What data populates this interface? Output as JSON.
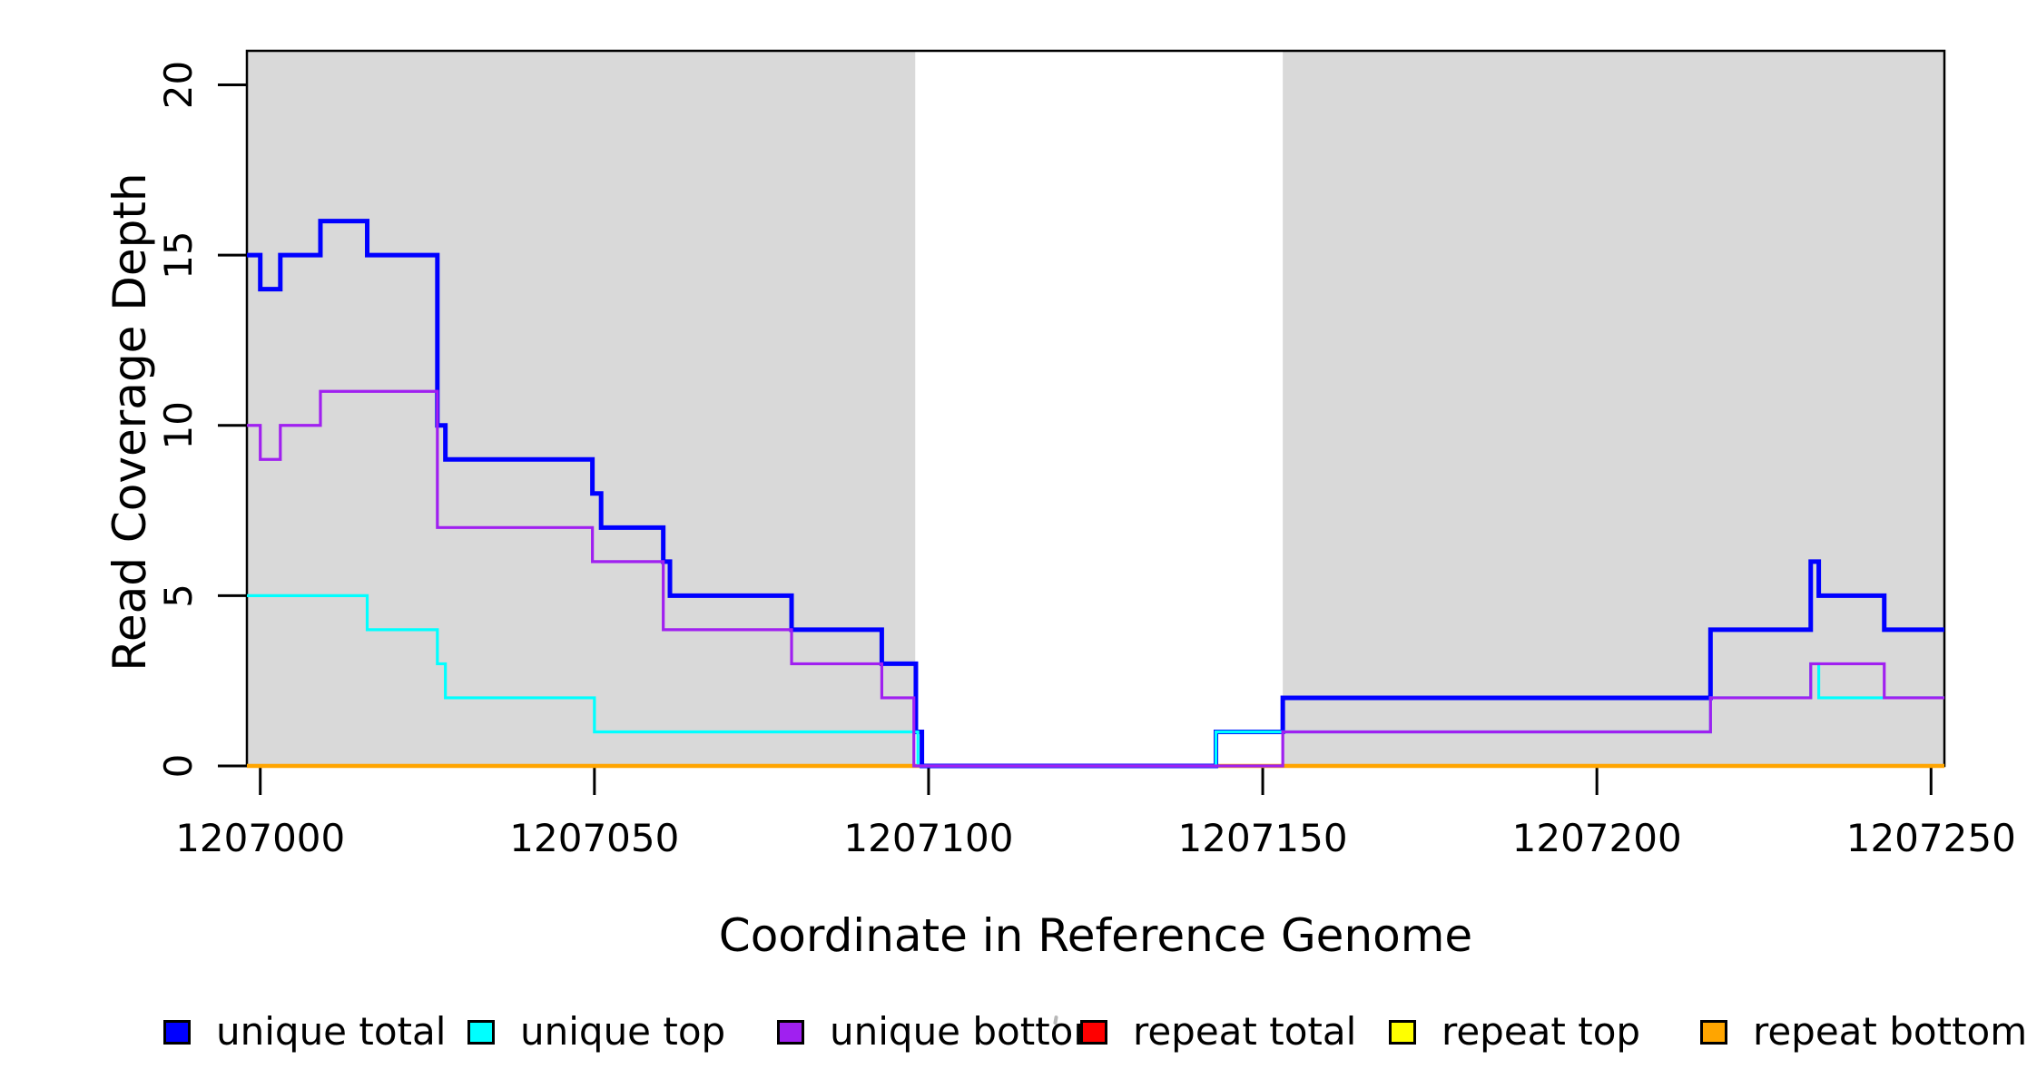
{
  "chart_data": {
    "type": "line",
    "subtype": "step",
    "title": "",
    "xlabel": "Coordinate in Reference Genome",
    "ylabel": "Read Coverage Depth",
    "xlim": [
      1206998,
      1207252
    ],
    "ylim": [
      0,
      21
    ],
    "grid": false,
    "x_ticks": [
      {
        "value": 1207000,
        "label": "1207000"
      },
      {
        "value": 1207050,
        "label": "1207050"
      },
      {
        "value": 1207100,
        "label": "1207100"
      },
      {
        "value": 1207150,
        "label": "1207150"
      },
      {
        "value": 1207200,
        "label": "1207200"
      },
      {
        "value": 1207250,
        "label": "1207250"
      }
    ],
    "y_ticks": [
      {
        "value": 0,
        "label": "0"
      },
      {
        "value": 5,
        "label": "5"
      },
      {
        "value": 10,
        "label": "10"
      },
      {
        "value": 15,
        "label": "15"
      },
      {
        "value": 20,
        "label": "20"
      }
    ],
    "highlight_regions": [
      {
        "from": 1206998,
        "to": 1207098,
        "color": "#d9d9d9"
      },
      {
        "from": 1207153,
        "to": 1207252,
        "color": "#d9d9d9"
      }
    ],
    "series": [
      {
        "name": "repeat total",
        "color": "#ff0000",
        "width": 3,
        "points": [
          [
            1206998,
            0
          ]
        ]
      },
      {
        "name": "repeat top",
        "color": "#ffff00",
        "width": 3,
        "points": [
          [
            1206998,
            0
          ]
        ]
      },
      {
        "name": "repeat bottom",
        "color": "#ffa500",
        "width": 4.5,
        "points": [
          [
            1206998,
            0
          ]
        ]
      },
      {
        "name": "unique total",
        "color": "#0000ff",
        "width": 5,
        "points": [
          [
            1206998,
            15
          ],
          [
            1207000,
            14
          ],
          [
            1207003,
            15
          ],
          [
            1207009,
            16
          ],
          [
            1207016,
            15
          ],
          [
            1207026.5,
            10
          ],
          [
            1207027.7,
            9
          ],
          [
            1207049.7,
            8
          ],
          [
            1207051,
            7
          ],
          [
            1207060.3,
            6
          ],
          [
            1207061.3,
            5
          ],
          [
            1207079.5,
            4
          ],
          [
            1207093,
            3
          ],
          [
            1207098.1,
            1
          ],
          [
            1207099,
            0
          ],
          [
            1207143,
            1
          ],
          [
            1207153,
            2
          ],
          [
            1207217,
            4
          ],
          [
            1207232,
            6
          ],
          [
            1207233.2,
            5
          ],
          [
            1207243,
            4
          ]
        ]
      },
      {
        "name": "unique top",
        "color": "#00ffff",
        "width": 3.2,
        "points": [
          [
            1206998,
            5
          ],
          [
            1207016,
            4
          ],
          [
            1207026.5,
            3
          ],
          [
            1207027.7,
            2
          ],
          [
            1207050,
            1
          ],
          [
            1207098.4,
            0
          ],
          [
            1207143,
            1
          ],
          [
            1207217,
            2
          ],
          [
            1207232,
            3
          ],
          [
            1207233.2,
            2
          ]
        ]
      },
      {
        "name": "unique bottom",
        "color": "#a020f0",
        "width": 3.2,
        "points": [
          [
            1206998,
            10
          ],
          [
            1207000,
            9
          ],
          [
            1207003,
            10
          ],
          [
            1207009,
            11
          ],
          [
            1207026.5,
            7
          ],
          [
            1207049.7,
            6
          ],
          [
            1207060.3,
            4
          ],
          [
            1207079.5,
            3
          ],
          [
            1207093,
            2
          ],
          [
            1207097.8,
            0
          ],
          [
            1207153,
            1
          ],
          [
            1207217,
            2
          ],
          [
            1207232,
            3
          ],
          [
            1207243,
            2
          ]
        ]
      }
    ],
    "legend": {
      "position": "bottom",
      "items": [
        {
          "label": "unique total",
          "color": "#0000ff"
        },
        {
          "label": "unique top",
          "color": "#00ffff"
        },
        {
          "label": "unique bottom",
          "color": "#a020f0"
        },
        {
          "label": "repeat total",
          "color": "#ff0000"
        },
        {
          "label": "repeat top",
          "color": "#ffff00"
        },
        {
          "label": "repeat bottom",
          "color": "#ffa500"
        }
      ]
    }
  }
}
